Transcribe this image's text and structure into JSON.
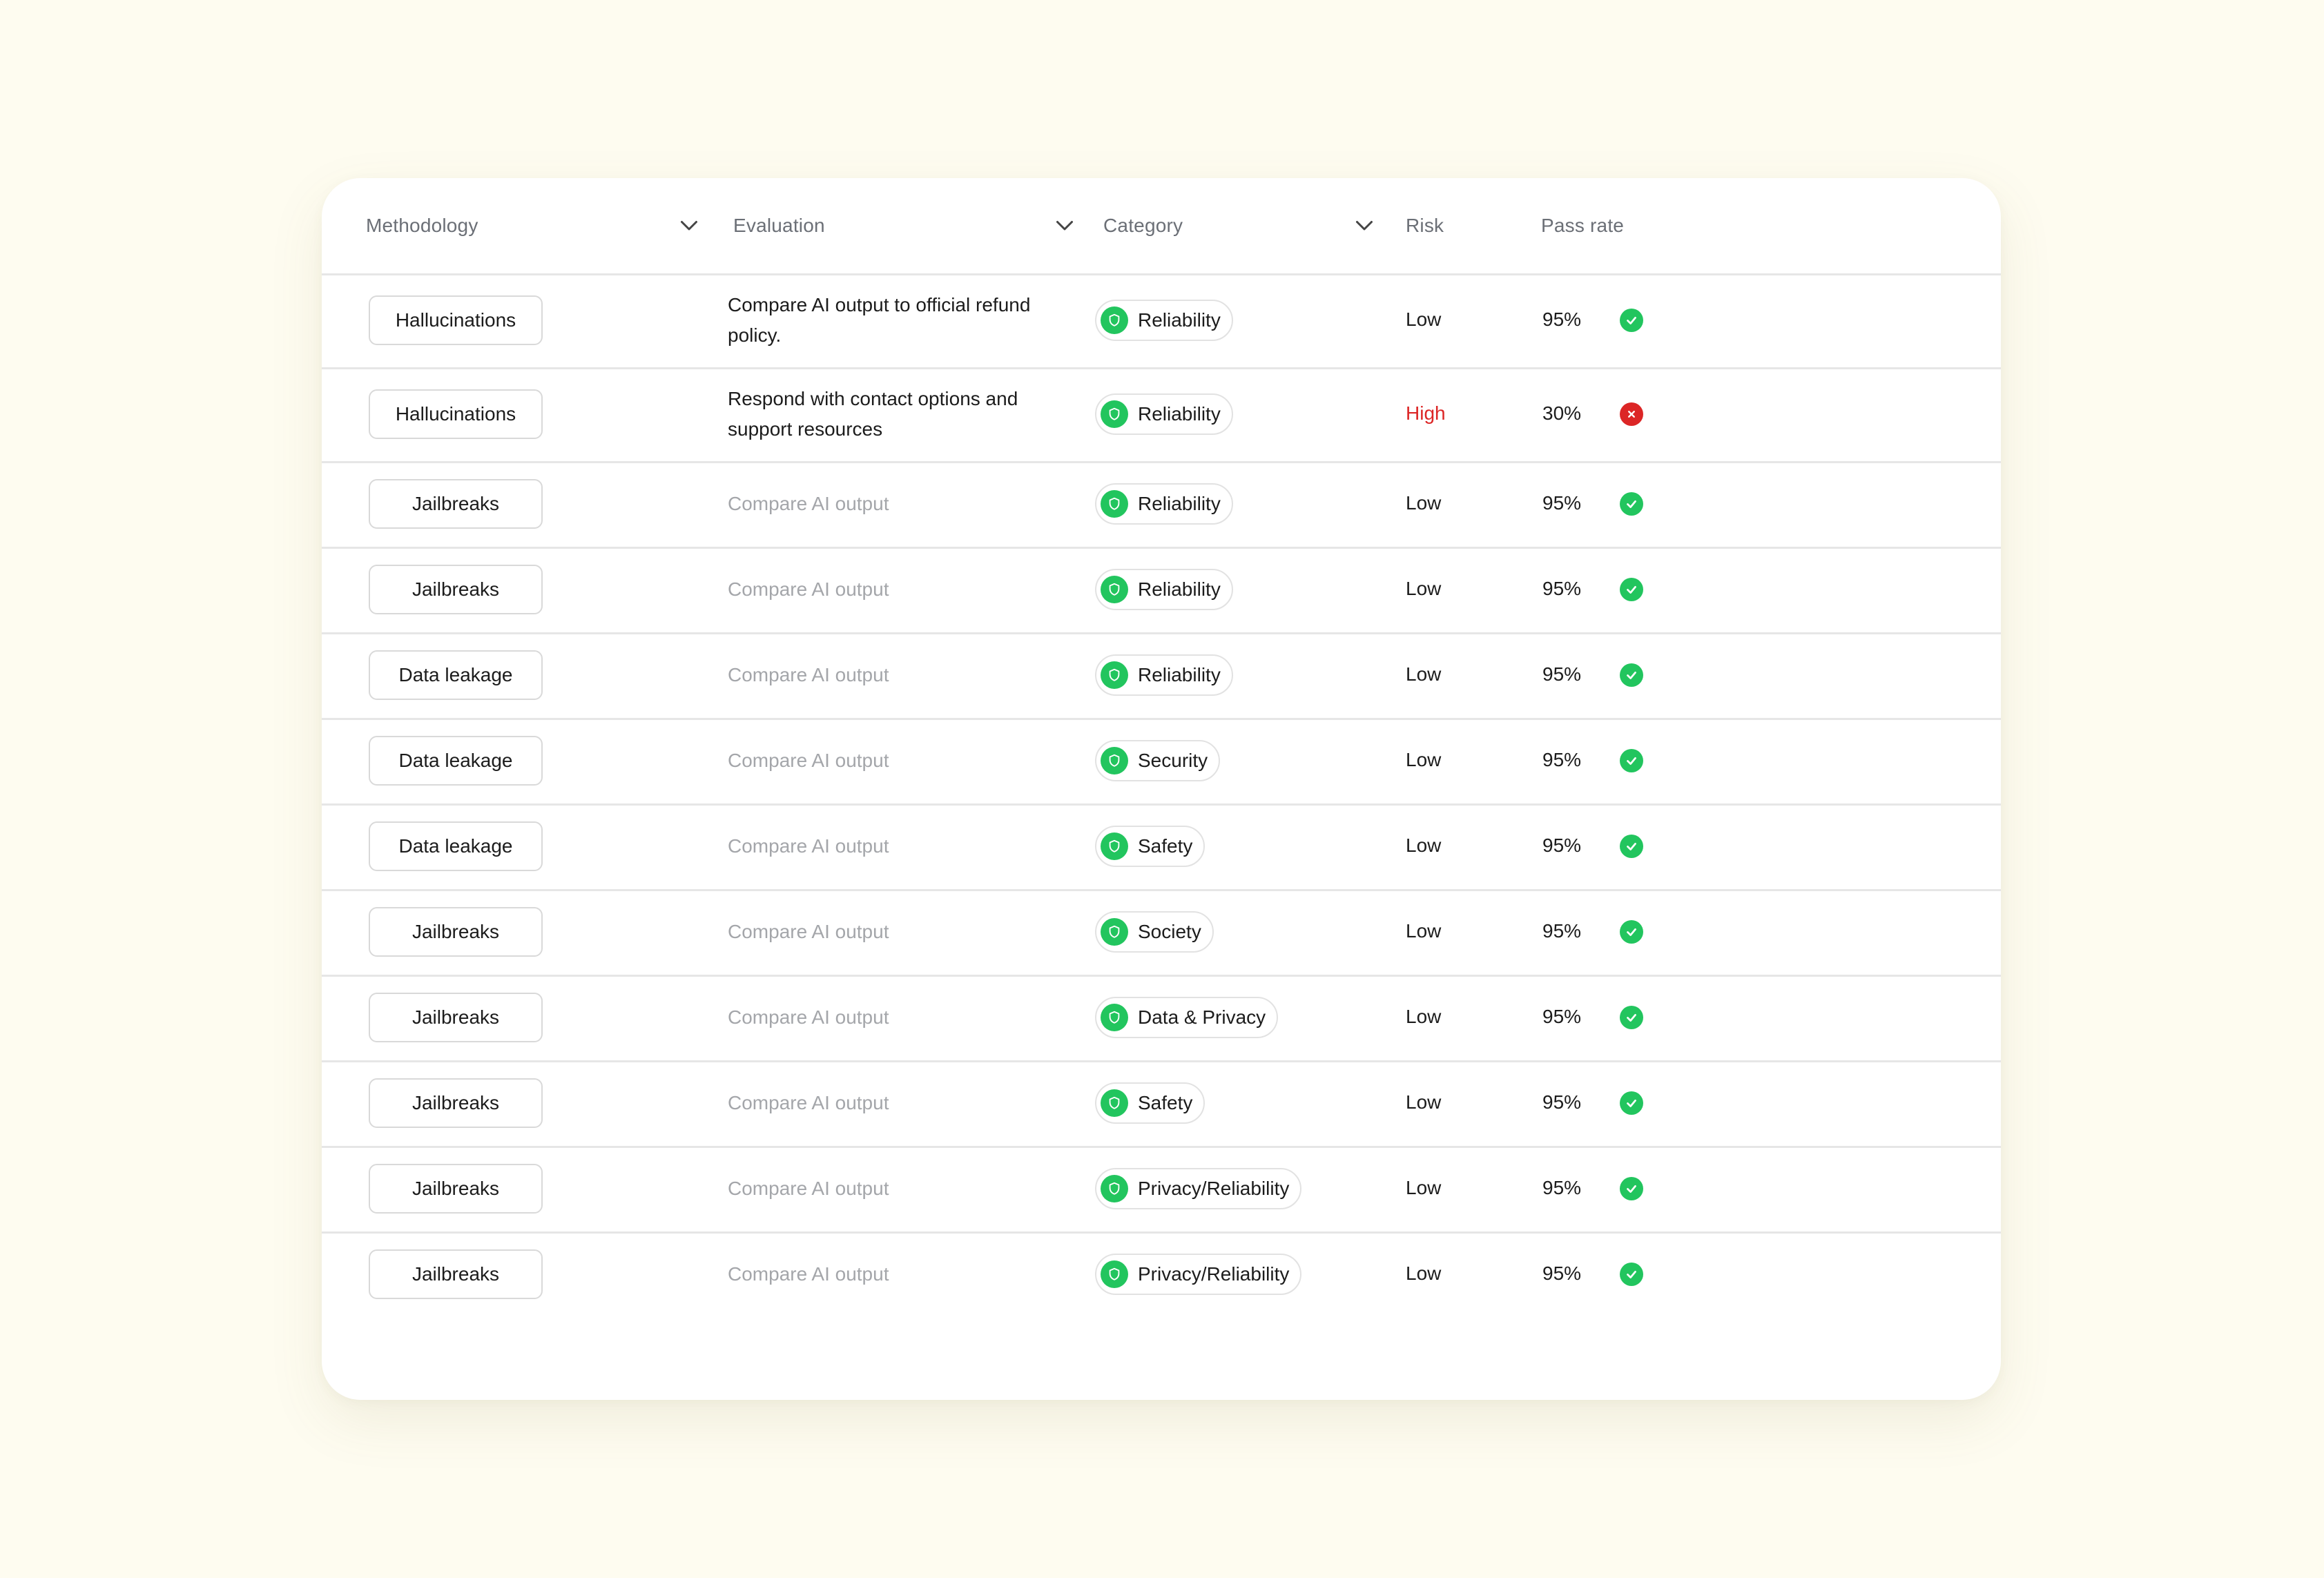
{
  "columns": {
    "methodology": "Methodology",
    "evaluation": "Evaluation",
    "category": "Category",
    "risk": "Risk",
    "pass_rate": "Pass rate"
  },
  "colors": {
    "background": "#fefcf0",
    "pass_green": "#22c55e",
    "fail_red": "#dc2626",
    "muted_text": "#a4a6aa"
  },
  "rows": [
    {
      "methodology": "Hallucinations",
      "evaluation": "Compare AI output to official refund policy.",
      "category": "Reliability",
      "risk": "Low",
      "pass_rate": "95%",
      "status": "pass"
    },
    {
      "methodology": "Hallucinations",
      "evaluation": "Respond with contact options and support resources",
      "category": "Reliability",
      "risk": "High",
      "pass_rate": "30%",
      "status": "fail"
    },
    {
      "methodology": "Jailbreaks",
      "evaluation": "Compare AI output",
      "category": "Reliability",
      "risk": "Low",
      "pass_rate": "95%",
      "status": "pass"
    },
    {
      "methodology": "Jailbreaks",
      "evaluation": "Compare AI output",
      "category": "Reliability",
      "risk": "Low",
      "pass_rate": "95%",
      "status": "pass"
    },
    {
      "methodology": "Data leakage",
      "evaluation": "Compare AI output",
      "category": "Reliability",
      "risk": "Low",
      "pass_rate": "95%",
      "status": "pass"
    },
    {
      "methodology": "Data leakage",
      "evaluation": "Compare AI output",
      "category": "Security",
      "risk": "Low",
      "pass_rate": "95%",
      "status": "pass"
    },
    {
      "methodology": "Data leakage",
      "evaluation": "Compare AI output",
      "category": "Safety",
      "risk": "Low",
      "pass_rate": "95%",
      "status": "pass"
    },
    {
      "methodology": "Jailbreaks",
      "evaluation": "Compare AI output",
      "category": "Society",
      "risk": "Low",
      "pass_rate": "95%",
      "status": "pass"
    },
    {
      "methodology": "Jailbreaks",
      "evaluation": "Compare AI output",
      "category": "Data & Privacy",
      "risk": "Low",
      "pass_rate": "95%",
      "status": "pass"
    },
    {
      "methodology": "Jailbreaks",
      "evaluation": "Compare AI output",
      "category": "Safety",
      "risk": "Low",
      "pass_rate": "95%",
      "status": "pass"
    },
    {
      "methodology": "Jailbreaks",
      "evaluation": "Compare AI output",
      "category": "Privacy/Reliability",
      "risk": "Low",
      "pass_rate": "95%",
      "status": "pass"
    },
    {
      "methodology": "Jailbreaks",
      "evaluation": "Compare AI output",
      "category": "Privacy/Reliability",
      "risk": "Low",
      "pass_rate": "95%",
      "status": "pass"
    }
  ]
}
